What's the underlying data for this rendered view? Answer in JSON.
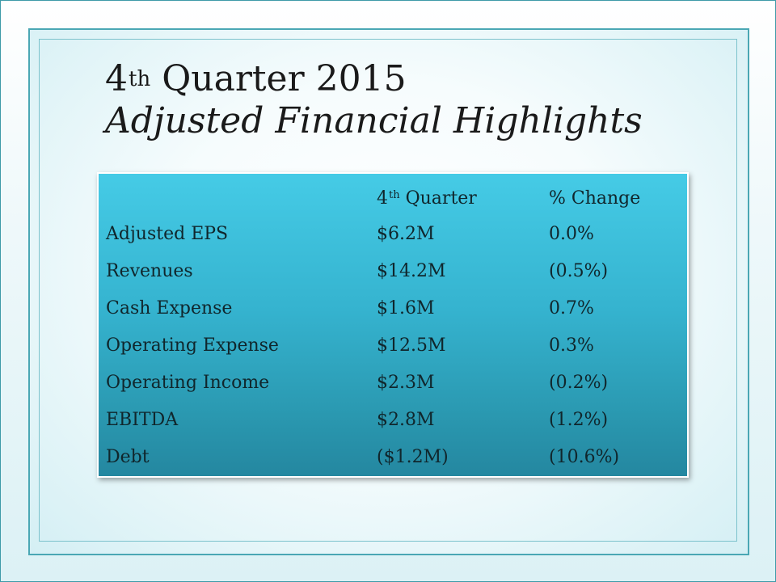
{
  "slide": {
    "title": {
      "number": "4",
      "suffix": "th",
      "rest": " Quarter 2015",
      "subtitle": "Adjusted Financial Highlights"
    },
    "table": {
      "header": {
        "quarter_number": "4",
        "quarter_suffix": "th",
        "quarter_rest": " Quarter",
        "change": "% Change"
      },
      "rows": [
        {
          "label": "Adjusted EPS",
          "value": "$6.2M",
          "change": "0.0%"
        },
        {
          "label": "Revenues",
          "value": "$14.2M",
          "change": "(0.5%)"
        },
        {
          "label": "Cash Expense",
          "value": "$1.6M",
          "change": "0.7%"
        },
        {
          "label": "Operating Expense",
          "value": "$12.5M",
          "change": "0.3%"
        },
        {
          "label": "Operating Income",
          "value": "$2.3M",
          "change": "(0.2%)"
        },
        {
          "label": "EBITDA",
          "value": "$2.8M",
          "change": "(1.2%)"
        },
        {
          "label": "Debt",
          "value": "($1.2M)",
          "change": "(10.6%)"
        }
      ]
    }
  }
}
